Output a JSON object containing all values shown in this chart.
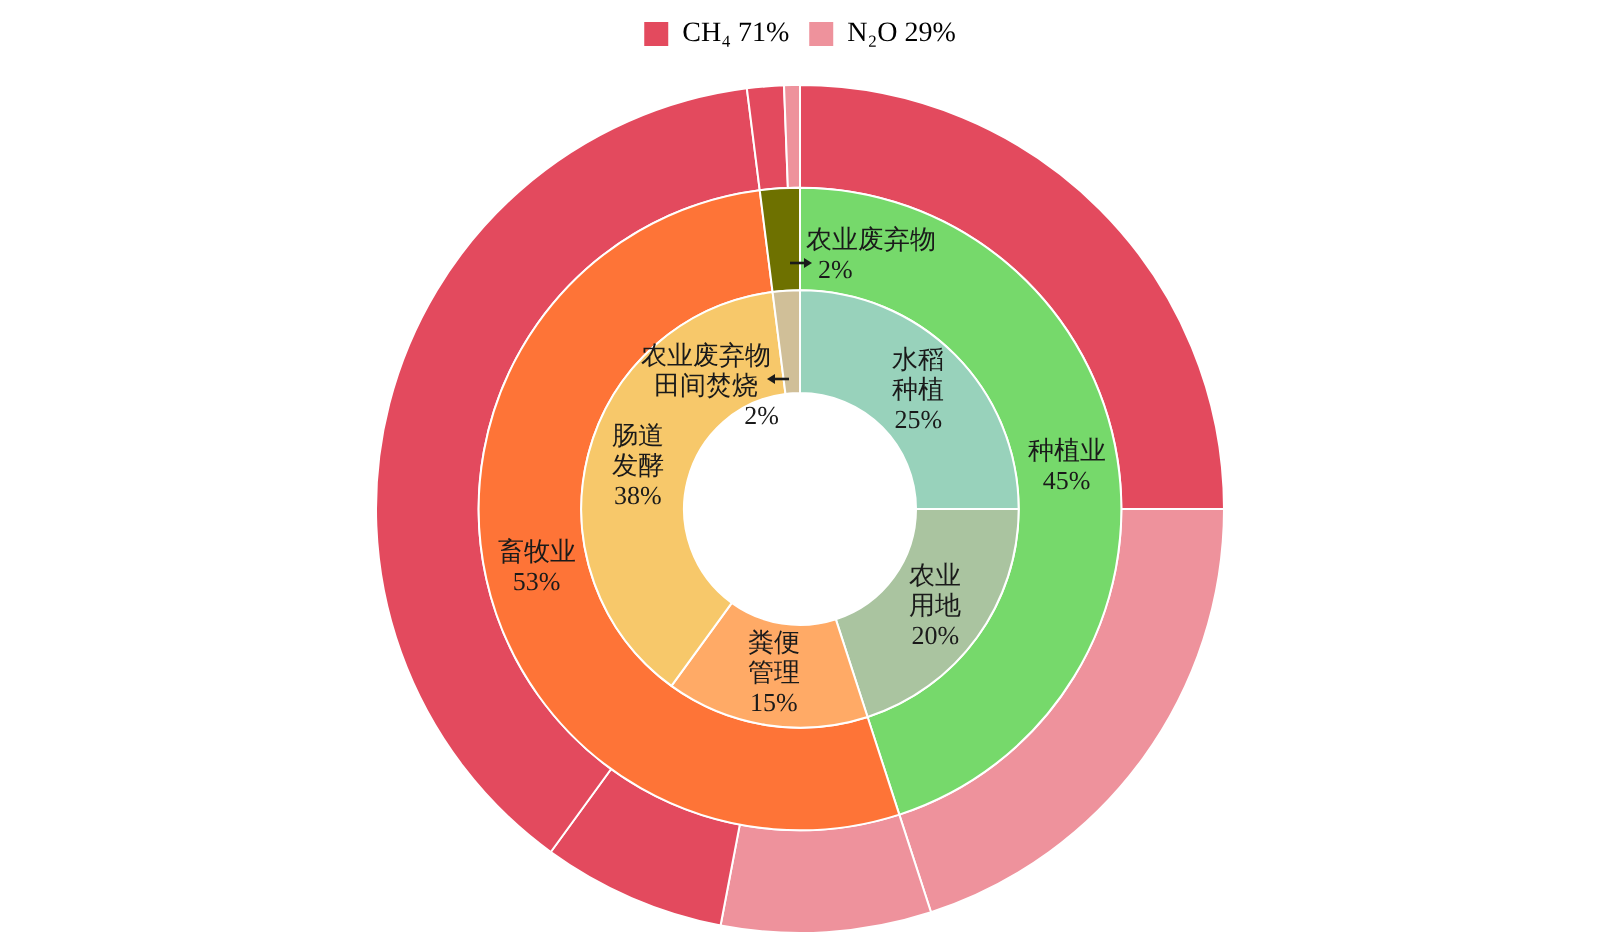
{
  "chart_data": [
    {
      "type": "donut",
      "categories": [
        "水稻种植",
        "农业用地",
        "粪便管理",
        "肠道发酵",
        "农业废弃物田间焚烧"
      ],
      "values": [
        25,
        20,
        15,
        38,
        2
      ],
      "value_labels": [
        "25%",
        "20%",
        "15%",
        "38%",
        "2%"
      ],
      "colors": [
        "#98d2bb",
        "#aac4a0",
        "#ffaa66",
        "#f7c86a",
        "#d0bf98"
      ]
    },
    {
      "type": "donut",
      "categories": [
        "种植业",
        "畜牧业",
        "农业废弃物"
      ],
      "values": [
        45,
        53,
        2
      ],
      "value_labels": [
        "45%",
        "53%",
        "2%"
      ],
      "colors": [
        "#76d96b",
        "#fe7437",
        "#6e7100"
      ]
    },
    {
      "type": "donut",
      "legend": "top",
      "categories": [
        "CH₄ 71%",
        "N₂O 29%",
        null,
        null,
        null,
        null,
        null
      ],
      "values": [
        25,
        20,
        8,
        7,
        38,
        1.4,
        0.6
      ],
      "colors": [
        "#e34a5e",
        "#ee929c",
        "#ee929c",
        "#e34a5e",
        "#e34a5e",
        "#e34a5e",
        "#ee929c"
      ]
    }
  ]
}
